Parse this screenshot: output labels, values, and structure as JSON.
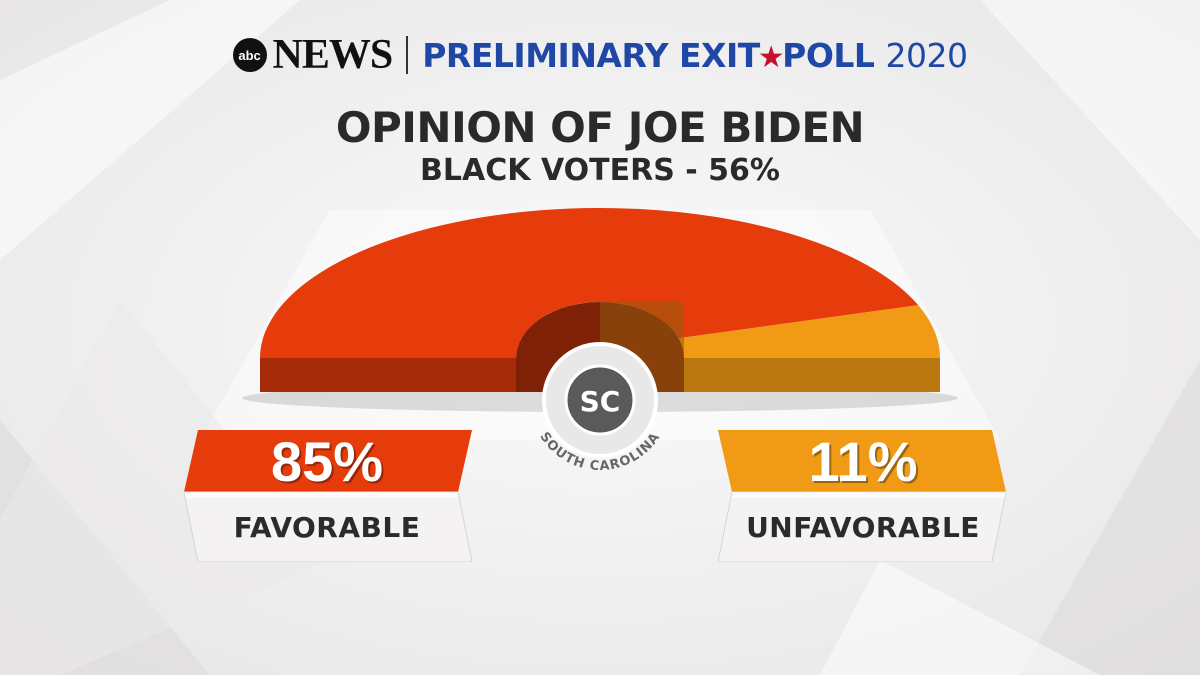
{
  "header": {
    "logo_text": "abc",
    "network": "NEWS",
    "poll_part1": "PRELIMINARY EXIT",
    "poll_part2": "POLL",
    "poll_year": "2020"
  },
  "title": "OPINION OF JOE BIDEN",
  "subtitle": "BLACK VOTERS - 56%",
  "state": {
    "abbr": "SC",
    "name": "SOUTH CAROLINA"
  },
  "colors": {
    "favorable": "#e63c0c",
    "unfavorable": "#f09a16",
    "brand_blue": "#1f47a6",
    "brand_red": "#c8102e"
  },
  "chart_data": {
    "type": "pie",
    "style": "half-donut gauge",
    "categories": [
      "FAVORABLE",
      "UNFAVORABLE"
    ],
    "values": [
      85,
      11
    ],
    "labels": [
      "85%",
      "11%"
    ],
    "unit": "%"
  }
}
